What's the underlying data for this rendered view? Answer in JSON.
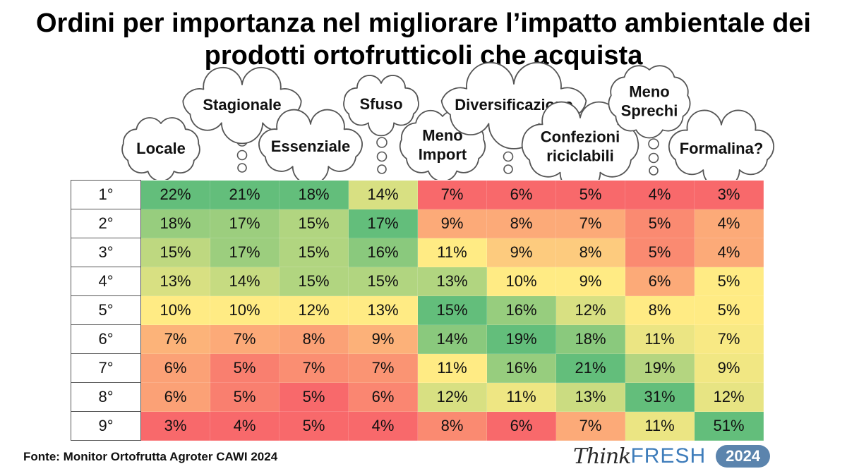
{
  "title_lines": [
    "Ordini per importanza nel migliorare l’impatto ambientale dei",
    "prodotti ortofrutticoli che acquista"
  ],
  "chart_data": {
    "type": "heatmap",
    "title": "Ordini per importanza nel migliorare l’impatto ambientale dei prodotti ortofrutticoli che acquista",
    "columns": [
      [
        "Locale"
      ],
      [
        "Stagionale"
      ],
      [
        "Essenziale"
      ],
      [
        "Sfuso"
      ],
      [
        "Meno",
        "Import"
      ],
      [
        "Diversificazione"
      ],
      [
        "Confezioni",
        "riciclabili"
      ],
      [
        "Meno",
        "Sprechi"
      ],
      [
        "Formalina?"
      ]
    ],
    "rows": [
      "1°",
      "2°",
      "3°",
      "4°",
      "5°",
      "6°",
      "7°",
      "8°",
      "9°"
    ],
    "values": [
      [
        22,
        21,
        18,
        14,
        7,
        6,
        5,
        4,
        3
      ],
      [
        18,
        17,
        15,
        17,
        9,
        8,
        7,
        5,
        4
      ],
      [
        15,
        17,
        15,
        16,
        11,
        9,
        8,
        5,
        4
      ],
      [
        13,
        14,
        15,
        15,
        13,
        10,
        9,
        6,
        5
      ],
      [
        10,
        10,
        12,
        13,
        15,
        16,
        12,
        8,
        5
      ],
      [
        7,
        7,
        8,
        9,
        14,
        19,
        18,
        11,
        7
      ],
      [
        6,
        5,
        7,
        7,
        11,
        16,
        21,
        19,
        9
      ],
      [
        6,
        5,
        5,
        6,
        12,
        11,
        13,
        31,
        12
      ],
      [
        3,
        4,
        5,
        4,
        8,
        6,
        7,
        11,
        51
      ]
    ],
    "value_suffix": "%",
    "color_scale": {
      "low": "#f8696b",
      "mid": "#ffeb84",
      "high": "#63be7b"
    }
  },
  "source": "Fonte: Monitor Ortofrutta Agroter CAWI 2024",
  "brand": {
    "think": "Think",
    "fresh": "FRESH",
    "year": "2024"
  }
}
